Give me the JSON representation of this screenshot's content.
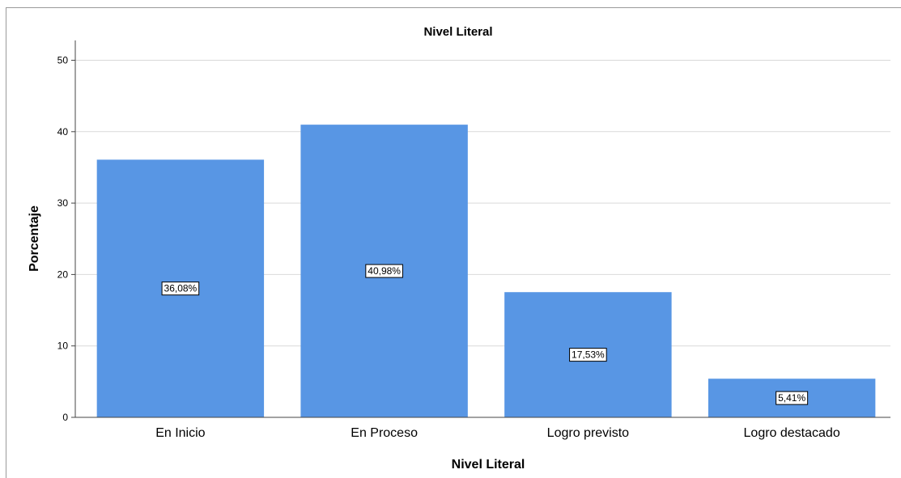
{
  "chart_data": {
    "type": "bar",
    "title": "Nivel Literal",
    "xlabel": "Nivel Literal",
    "ylabel": "Porcentaje",
    "categories": [
      "En Inicio",
      "En Proceso",
      "Logro previsto",
      "Logro destacado"
    ],
    "values": [
      36.08,
      40.98,
      17.53,
      5.41
    ],
    "data_labels": [
      "36,08%",
      "40,98%",
      "17,53%",
      "5,41%"
    ],
    "ylim": [
      0,
      50
    ],
    "yticks": [
      "0",
      "10",
      "20",
      "30",
      "40",
      "50"
    ],
    "grid": true,
    "legend": "none",
    "colors": {
      "bar": "#5896e4",
      "grid": "#d9d9d9",
      "axis": "#444444"
    }
  }
}
